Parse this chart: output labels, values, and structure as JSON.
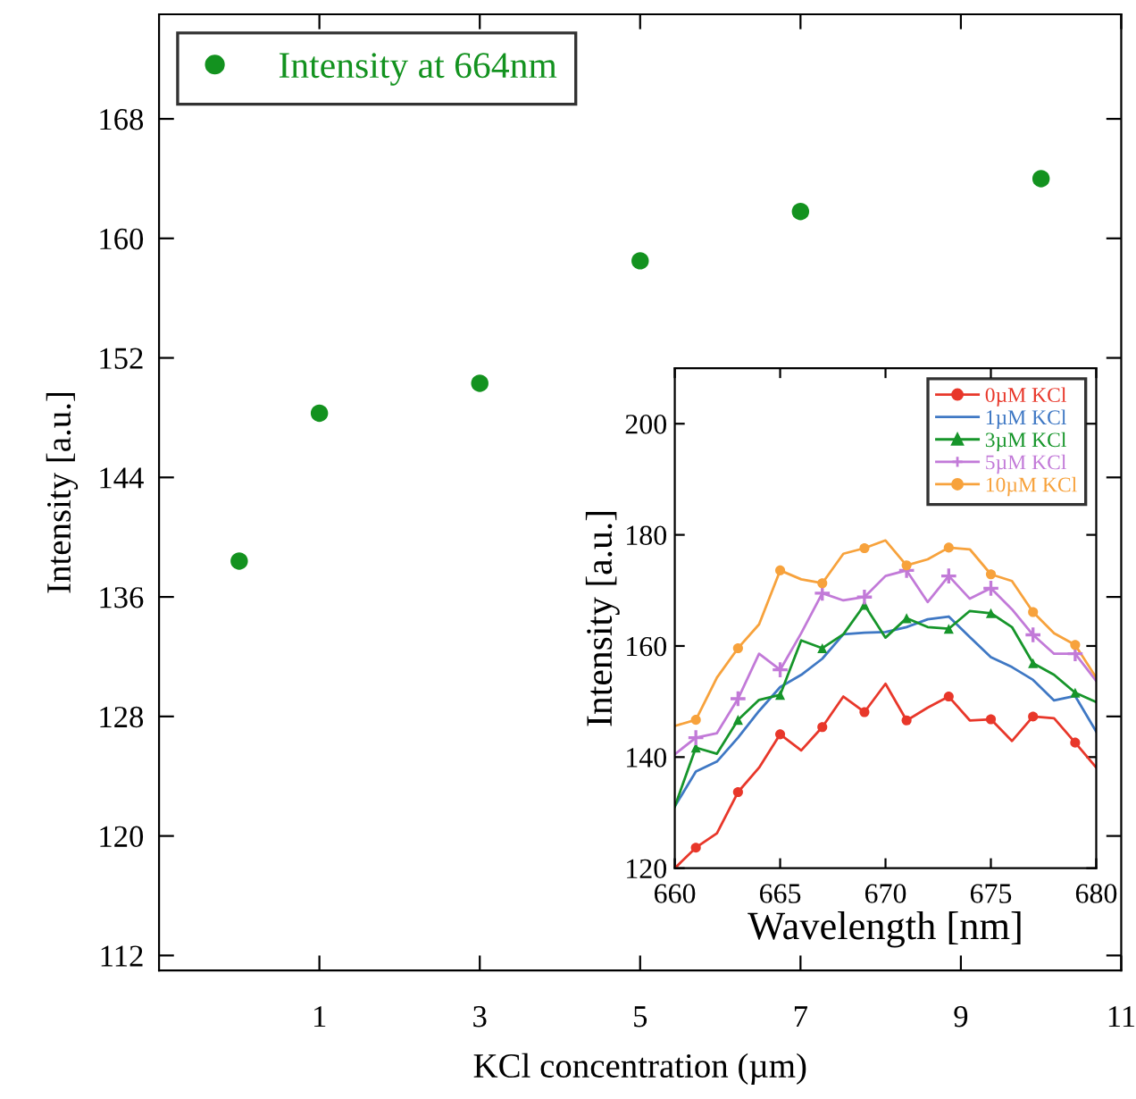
{
  "chart_data": [
    {
      "type": "scatter",
      "xlabel": "KCl concentration (µm)",
      "ylabel": "Intensity [a.u.]",
      "x": [
        0,
        1,
        3,
        5,
        7,
        10
      ],
      "xlim": [
        -1,
        11
      ],
      "ylim": [
        111,
        175
      ],
      "xticks": [
        1,
        3,
        5,
        7,
        9,
        11
      ],
      "yticks": [
        112,
        120,
        128,
        136,
        144,
        152,
        160,
        168
      ],
      "legend": "top left",
      "marker": "circle",
      "grid": false,
      "series": [
        {
          "name": "Intensity at 664nm",
          "color": "#13921f",
          "values": [
            138.4,
            148.3,
            150.3,
            158.5,
            161.8,
            164.0
          ]
        }
      ]
    },
    {
      "type": "line",
      "xlabel": "Wavelength [nm]",
      "ylabel": "Intensity [a.u.]",
      "x": [
        660,
        661,
        662,
        663,
        664,
        665,
        666,
        667,
        668,
        669,
        670,
        671,
        672,
        673,
        674,
        675,
        676,
        677,
        678,
        679,
        680
      ],
      "xlim": [
        660,
        680
      ],
      "ylim": [
        120,
        210
      ],
      "xticks": [
        660,
        665,
        670,
        675,
        680
      ],
      "yticks": [
        120,
        140,
        160,
        180,
        200
      ],
      "legend": "top right",
      "grid": false,
      "line_style": "solid",
      "series": [
        {
          "color": "#e8372a",
          "values": [
            120.0,
            123.7,
            126.3,
            133.7,
            138.1,
            144.1,
            141.2,
            145.4,
            150.9,
            148.1,
            153.2,
            146.6,
            148.9,
            150.9,
            146.6,
            146.8,
            142.9,
            147.3,
            147.0,
            142.6,
            138.1
          ]
        },
        {
          "name": "0µM KCl",
          "type": "scatter",
          "color": "#e8372a",
          "marker": "circle",
          "x": [
            661,
            663,
            665,
            667,
            669,
            671,
            673,
            675,
            677,
            679
          ],
          "values": [
            123.7,
            133.7,
            144.1,
            145.4,
            148.1,
            146.6,
            150.9,
            146.8,
            147.3,
            142.6
          ]
        },
        {
          "name": "1µM KCl",
          "color": "#3f78c4",
          "values": [
            131.1,
            137.4,
            139.2,
            143.5,
            148.3,
            152.6,
            154.8,
            157.7,
            162.1,
            162.4,
            162.5,
            163.4,
            164.8,
            165.3,
            161.6,
            158.0,
            156.2,
            153.9,
            150.2,
            151.0,
            144.6
          ]
        },
        {
          "color": "#16952a",
          "values": [
            131.1,
            141.7,
            140.6,
            146.7,
            150.3,
            151.2,
            161.0,
            159.6,
            162.1,
            167.4,
            161.5,
            165.0,
            163.4,
            163.1,
            166.3,
            165.9,
            163.4,
            156.9,
            154.8,
            151.6,
            149.9
          ]
        },
        {
          "name": "3µM KCl",
          "type": "scatter",
          "color": "#16952a",
          "marker": "triangle",
          "x": [
            661,
            663,
            665,
            667,
            669,
            671,
            673,
            675,
            677,
            679
          ],
          "values": [
            141.7,
            146.7,
            151.2,
            159.6,
            167.4,
            165.0,
            163.1,
            165.9,
            156.9,
            151.6
          ]
        },
        {
          "color": "#c27ad8",
          "values": [
            140.5,
            143.5,
            144.3,
            150.5,
            158.6,
            155.7,
            162.3,
            169.5,
            168.2,
            168.8,
            172.6,
            173.6,
            167.9,
            172.6,
            168.5,
            170.4,
            166.6,
            162.0,
            158.6,
            158.6,
            153.7
          ]
        },
        {
          "name": "5µM KCl",
          "type": "scatter",
          "color": "#c27ad8",
          "marker": "cross",
          "x": [
            661,
            663,
            665,
            667,
            669,
            671,
            673,
            675,
            677,
            679
          ],
          "values": [
            143.5,
            150.5,
            155.7,
            169.5,
            168.8,
            173.6,
            172.6,
            170.4,
            162.0,
            158.6
          ]
        },
        {
          "color": "#f7a23c",
          "values": [
            145.6,
            146.7,
            154.3,
            159.6,
            163.9,
            173.6,
            172.0,
            171.3,
            176.6,
            177.6,
            179.0,
            174.5,
            175.6,
            177.7,
            177.4,
            172.9,
            171.7,
            166.1,
            162.3,
            160.2,
            154.3
          ]
        },
        {
          "name": "10µM KCl",
          "type": "scatter",
          "color": "#f7a23c",
          "marker": "circle",
          "x": [
            661,
            663,
            665,
            667,
            669,
            671,
            673,
            675,
            677,
            679
          ],
          "values": [
            146.7,
            159.6,
            173.6,
            171.3,
            177.6,
            174.5,
            177.7,
            172.9,
            166.1,
            160.2
          ]
        }
      ]
    }
  ]
}
